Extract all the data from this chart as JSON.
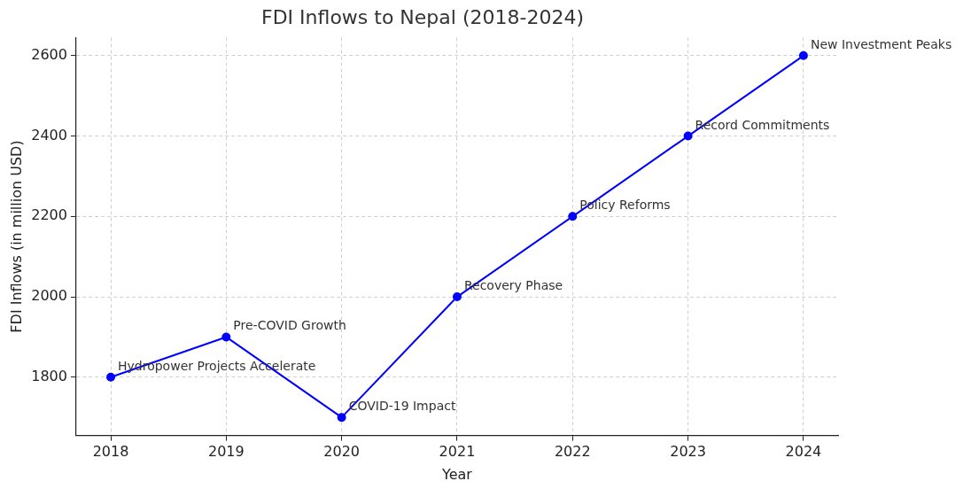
{
  "chart_data": {
    "type": "line",
    "title": "FDI Inflows to Nepal (2018-2024)",
    "xlabel": "Year",
    "ylabel": "FDI Inflows (in million USD)",
    "x": [
      2018,
      2019,
      2020,
      2021,
      2022,
      2023,
      2024
    ],
    "series": [
      {
        "color": "#0000ff",
        "values": [
          1800,
          1900,
          1700,
          2000,
          2200,
          2400,
          2600
        ]
      }
    ],
    "xlim": [
      2017.7,
      2024.3
    ],
    "xticks": [
      2018,
      2019,
      2020,
      2021,
      2022,
      2023,
      2024
    ],
    "ylim": [
      1655,
      2645
    ],
    "yticks": [
      1800,
      2000,
      2200,
      2400,
      2600
    ],
    "grid": true,
    "legend": false,
    "marker": "circle",
    "line_style": "solid",
    "annotations": [
      {
        "text": "Hydropower Projects Accelerate",
        "x": 2018,
        "y": 1800
      },
      {
        "text": "Pre-COVID Growth",
        "x": 2019,
        "y": 1900
      },
      {
        "text": "COVID-19 Impact",
        "x": 2020,
        "y": 1700
      },
      {
        "text": "Recovery Phase",
        "x": 2021,
        "y": 2000
      },
      {
        "text": "Policy Reforms",
        "x": 2022,
        "y": 2200
      },
      {
        "text": "Record Commitments",
        "x": 2023,
        "y": 2400
      },
      {
        "text": "New Investment Peaks",
        "x": 2024,
        "y": 2600
      }
    ]
  }
}
